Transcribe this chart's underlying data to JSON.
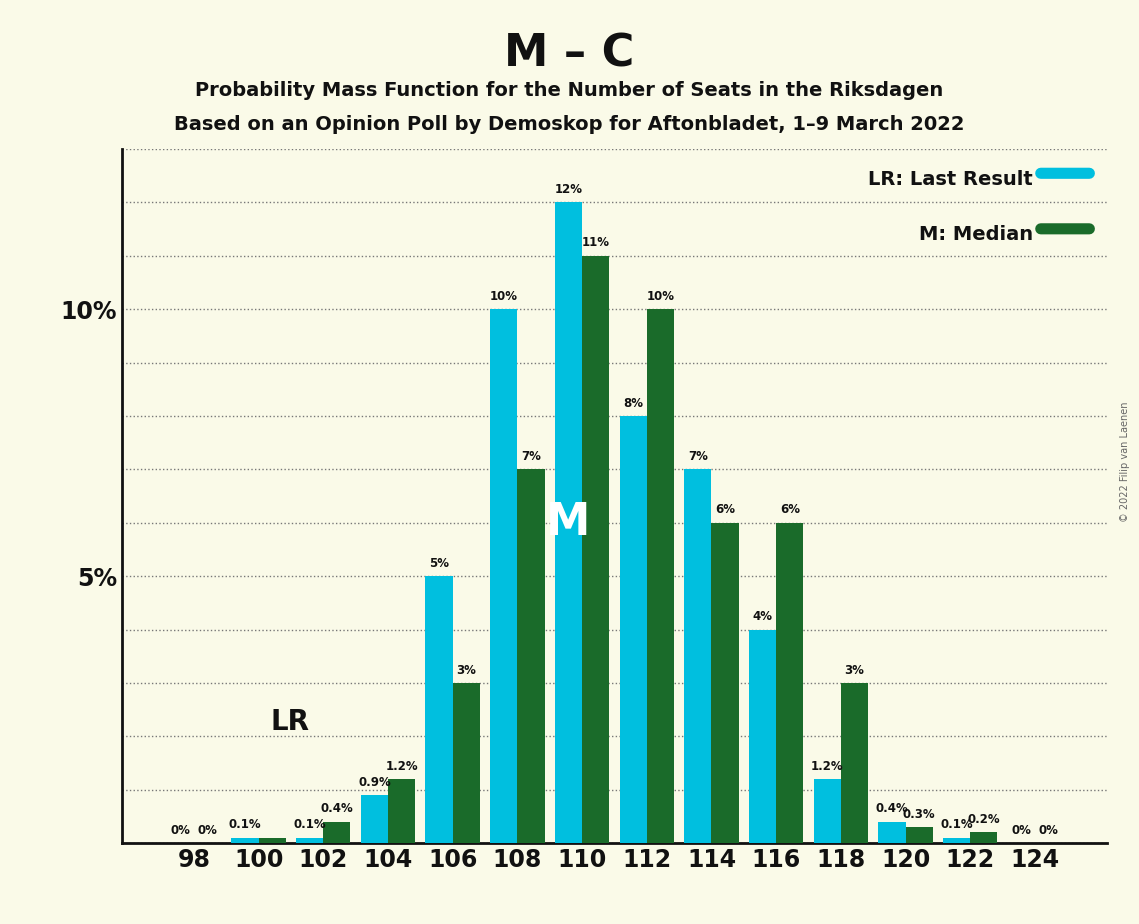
{
  "title": "M – C",
  "subtitle1": "Probability Mass Function for the Number of Seats in the Riksdagen",
  "subtitle2": "Based on an Opinion Poll by Demoskop for Aftonbladet, 1–9 March 2022",
  "copyright": "© 2022 Filip van Laenen",
  "legend_lr": "LR: Last Result",
  "legend_m": "M: Median",
  "median_label": "M",
  "lr_label": "LR",
  "seats": [
    98,
    100,
    102,
    104,
    106,
    108,
    110,
    112,
    114,
    116,
    118,
    120,
    122,
    124
  ],
  "cyan_values": [
    0.0,
    0.1,
    0.1,
    0.9,
    5.0,
    10.0,
    12.0,
    8.0,
    7.0,
    4.0,
    1.2,
    0.4,
    0.1,
    0.0
  ],
  "green_values": [
    0.0,
    0.1,
    0.4,
    1.2,
    3.0,
    7.0,
    11.0,
    10.0,
    6.0,
    6.0,
    3.0,
    0.3,
    0.2,
    0.0
  ],
  "cyan_labels": [
    "0%",
    "0.1%",
    "0.1%",
    "0.9%",
    "5%",
    "10%",
    "12%",
    "8%",
    "7%",
    "4%",
    "1.2%",
    "0.4%",
    "0.1%",
    "0%"
  ],
  "green_labels": [
    "0%",
    "",
    "0.4%",
    "1.2%",
    "3%",
    "7%",
    "11%",
    "10%",
    "6%",
    "6%",
    "3%",
    "0.3%",
    "0.2%",
    "0%"
  ],
  "cyan_color": "#00BFDF",
  "green_color": "#1A6B2A",
  "bg_color": "#FAFAE8",
  "title_color": "#111111",
  "text_color": "#111111",
  "axis_color": "#111111",
  "ylim": [
    0,
    13
  ],
  "median_seat": 110,
  "lr_seat": 102,
  "bar_width": 0.42,
  "yticks": [
    0,
    1,
    2,
    3,
    4,
    5,
    6,
    7,
    8,
    9,
    10,
    11,
    12,
    13
  ],
  "ytick_labels": [
    "",
    "",
    "",
    "",
    "",
    "5%",
    "",
    "",
    "",
    "",
    "10%",
    "",
    "",
    ""
  ]
}
